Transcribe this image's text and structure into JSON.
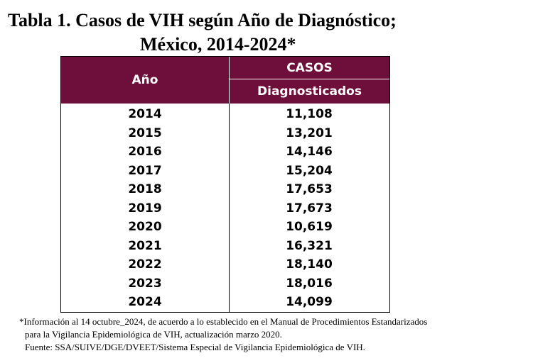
{
  "title": {
    "line1": "Tabla 1. Casos de VIH según Año de Diagnóstico;",
    "line2": "México, 2014-2024*"
  },
  "table": {
    "header": {
      "year": "Año",
      "cases_top": "CASOS",
      "cases_bottom": "Diagnosticados"
    },
    "rows": [
      {
        "year": "2014",
        "cases": "11,108"
      },
      {
        "year": "2015",
        "cases": "13,201"
      },
      {
        "year": "2016",
        "cases": "14,146"
      },
      {
        "year": "2017",
        "cases": "15,204"
      },
      {
        "year": "2018",
        "cases": "17,653"
      },
      {
        "year": "2019",
        "cases": "17,673"
      },
      {
        "year": "2020",
        "cases": "10,619"
      },
      {
        "year": "2021",
        "cases": "16,321"
      },
      {
        "year": "2022",
        "cases": "18,140"
      },
      {
        "year": "2023",
        "cases": "18,016"
      },
      {
        "year": "2024",
        "cases": "14,099"
      }
    ],
    "header_color": "#6d0f3a"
  },
  "footnote": {
    "line1": "*Información al 14 octubre_2024, de acuerdo a lo establecido en el Manual de Procedimientos Estandarizados",
    "line2": "para la Vigilancia Epidemiológica de VIH, actualización marzo 2020.",
    "line3": "Fuente: SSA/SUIVE/DGE/DVEET/Sistema Especial de Vigilancia Epidemiológica de VIH."
  }
}
